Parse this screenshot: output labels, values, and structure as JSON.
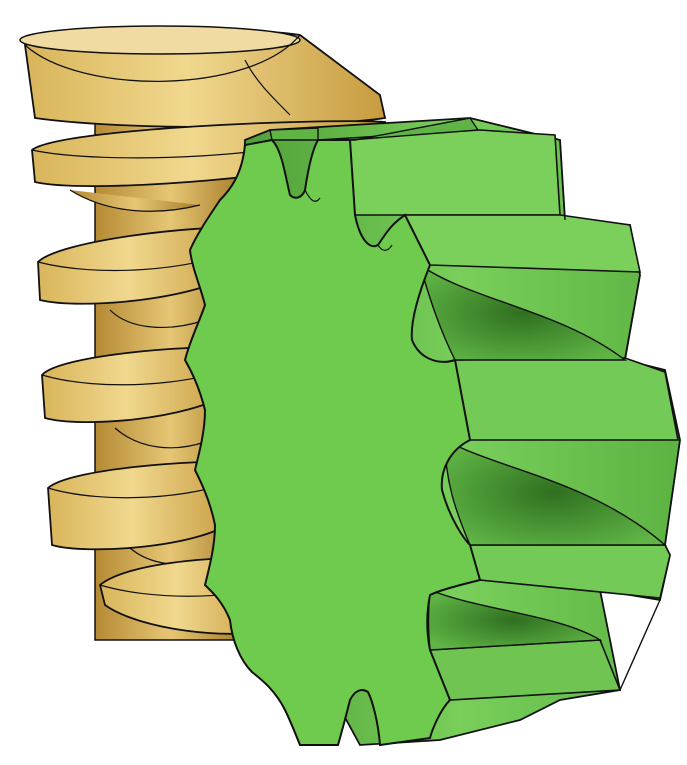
{
  "scene": {
    "subject": "worm-gear-pair",
    "background_color": "#ffffff",
    "outline_color": "#111111"
  },
  "worm": {
    "color": "#e2c26a",
    "shade_color": "#b8913a",
    "light_color": "#f3dfa0",
    "thread_turns": 5
  },
  "gear": {
    "color": "#6bc64f",
    "shade_color": "#3f8f2c",
    "light_color": "#8fe070",
    "visible_teeth": 14
  }
}
